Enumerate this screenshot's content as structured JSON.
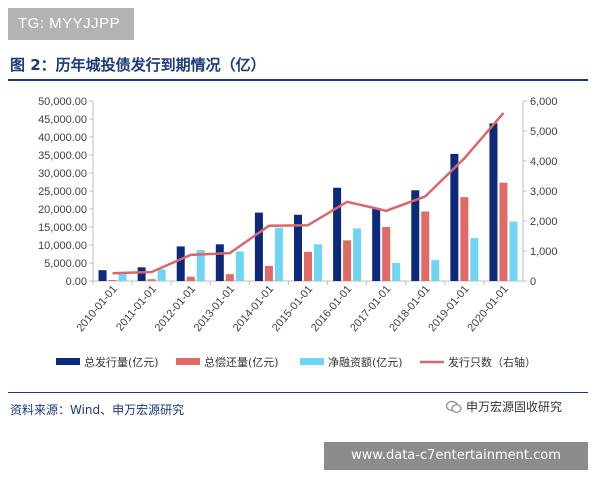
{
  "tag": "TG: MYYJJPP",
  "watermark": "申万宏源固收研究",
  "url_banner": "www.data-c7entertainment.com",
  "colors": {
    "navy": "#0d2a7a",
    "salmon": "#e06a66",
    "cyan": "#6ed6f2",
    "line": "#d9666b",
    "title": "#1c3a78"
  },
  "chart_data": {
    "type": "bar",
    "title": "图 2：历年城投债发行到期情况（亿）",
    "source": "资料来源：Wind、申万宏源研究",
    "categories": [
      "2010-01-01",
      "2011-01-01",
      "2012-01-01",
      "2013-01-01",
      "2014-01-01",
      "2015-01-01",
      "2016-01-01",
      "2017-01-01",
      "2018-01-01",
      "2019-01-01",
      "2020-01-01"
    ],
    "left_ticks": [
      "0.00",
      "5,000.00",
      "10,000.00",
      "15,000.00",
      "20,000.00",
      "25,000.00",
      "30,000.00",
      "35,000.00",
      "40,000.00",
      "45,000.00",
      "50,000.00"
    ],
    "right_ticks": [
      "0",
      "1,000",
      "2,000",
      "3,000",
      "4,000",
      "5,000",
      "6,000"
    ],
    "ylim": [
      0,
      50000
    ],
    "y2lim": [
      0,
      6000
    ],
    "legend_position": "bottom",
    "series": [
      {
        "name": "总发行量(亿元)",
        "kind": "bar",
        "color": "#0d2a7a",
        "values": [
          3000,
          3800,
          9600,
          10200,
          19000,
          18400,
          25900,
          20000,
          25200,
          35300,
          43800
        ]
      },
      {
        "name": "总偿还量(亿元)",
        "kind": "bar",
        "color": "#e06a66",
        "values": [
          300,
          500,
          1200,
          1900,
          4200,
          8100,
          11300,
          15000,
          19300,
          23300,
          27300
        ]
      },
      {
        "name": "净融资额(亿元)",
        "kind": "bar",
        "color": "#6ed6f2",
        "values": [
          2400,
          3200,
          8600,
          8200,
          14800,
          10200,
          14600,
          5000,
          5800,
          11900,
          16500
        ]
      },
      {
        "name": "发行只数（右轴）",
        "kind": "line",
        "axis": "right",
        "color": "#d9666b",
        "values": [
          260,
          300,
          870,
          930,
          1840,
          1860,
          2640,
          2340,
          2820,
          4090,
          5600
        ]
      }
    ]
  }
}
